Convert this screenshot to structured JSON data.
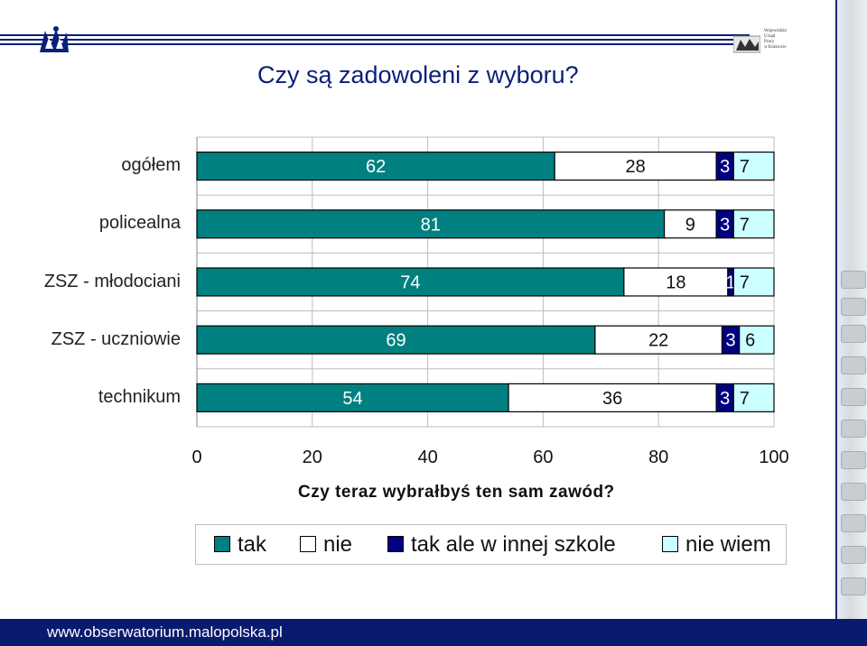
{
  "page": {
    "title": "Czy są zadowoleni z wyboru?",
    "footer_url": "www.obserwatorium.malopolska.pl",
    "logo_right_text": [
      "Wojewódzki",
      "Urząd",
      "Pracy",
      "w Krakowie"
    ]
  },
  "chart_data": {
    "type": "bar",
    "orientation": "horizontal",
    "stacked": true,
    "title": "Czy są zadowoleni z wyboru?",
    "xlabel": "Czy teraz wybrałbyś ten sam zawód?",
    "xlim": [
      0,
      100
    ],
    "xticks": [
      "0",
      "20",
      "40",
      "60",
      "80",
      "100"
    ],
    "categories": [
      "ogółem",
      "policealna",
      "ZSZ - młodociani",
      "ZSZ - uczniowie",
      "technikum"
    ],
    "series": [
      {
        "name": "tak",
        "color": "#008080",
        "values": [
          62,
          81,
          74,
          69,
          54
        ]
      },
      {
        "name": "nie",
        "color": "#ffffff",
        "values": [
          28,
          9,
          18,
          22,
          36
        ]
      },
      {
        "name": "tak ale w innej szkole",
        "color": "#000080",
        "values": [
          3,
          3,
          1,
          3,
          3
        ]
      },
      {
        "name": "nie wiem",
        "color": "#ccffff",
        "values": [
          7,
          7,
          7,
          6,
          7
        ]
      }
    ],
    "legend_position": "bottom",
    "grid": true
  }
}
